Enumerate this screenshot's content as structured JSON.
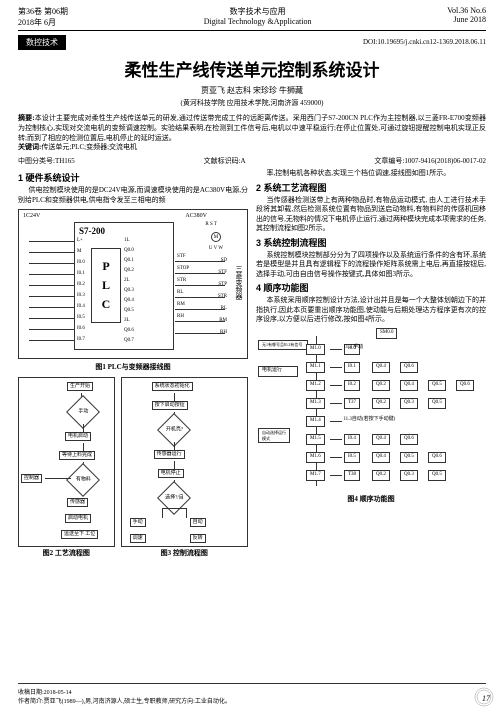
{
  "header": {
    "vol_cn": "第36卷 第06期",
    "year_cn": "2018年 6月",
    "journal_cn": "数字技术与应用",
    "journal_en": "Digital Technology &Application",
    "vol_en": "Vol.36 No.6",
    "date_en": "June 2018"
  },
  "category": "数控技术",
  "doi": "DOI:10.19695/j.cnki.cn12-1369.2018.06.11",
  "title": "柔性生产线传送单元控制系统设计",
  "authors": "贾亚飞 赵志科 宋珍珍 牛狮藏",
  "affiliation": "(黄河科技学院 应用技术学院,河南济源 459000)",
  "abstract_label": "摘要:",
  "abstract_text": "本设计主要完成对柔性生产线传送单元的研发,通过传送带完成工件的远距离传送。采用西门子S7-200CN PLC作为主控制器,以三菱FR-E700变频器为控制核心,实现对交流电机的变频调速控制。实验结果表明,在检测到工件信号后,电机以中速平稳运行;在停止位置处,可通过旋钮提醒控制电机实现正反转;而到了相应的检测位置后,电机停止的延时运送。",
  "keywords_label": "关键词:",
  "keywords_text": "传送单元;PLC;变频器;交流电机",
  "clc_label": "中图分类号:",
  "clc": "TH165",
  "doc_code_label": "文献标识码:",
  "doc_code": "A",
  "article_no_label": "文章编号:",
  "article_no": "1007-9416(2018)06-0017-02",
  "sections": {
    "s1": "1 硬件系统设计",
    "s1_text": "供电控制模块使用的是DC24V电源,而调速模块使用的是AC380V电源,分别给PLC和变频器供电,供电指令发至三相电的频",
    "s2": "2 系统工艺流程图",
    "s2_intro": "率,控制电机各种状态,实现三个档位调速,接线图如图1所示。",
    "s2_text": "当传感器检测送带上有两种物品时,有物品运动模式, 由人工进行技术手段将其卸载,然后检测系统位置有物品到送启动物料,有物料时的传感机回移出的信号,无物料的情况下电机停止运行,通过两种模块完成本项需求的任务,其控制流程如图2所示。",
    "s3": "3 系统控制流程图",
    "s3_text": "系统控制模块控制部分分为了四项操作以及系统运行条件的含有环,系统若是模型是并且具有逻辑程下的流程操作矩阵系统需上电后,再直接按钮后,选择手动,可由自由信号操作按键式,具体如图3所示。",
    "s4": "4 顺序功能图",
    "s4_text": "本系统采用顺序控制设计方法,设计出并且是每一个大整体划朝边下的并指执行,因此本页要重出顺序功能图,使动能与后期处理达方程序更有次的控序设序,以方便以后进行修改,按如图4所示。"
  },
  "figures": {
    "fig1": "图1 PLC与变频器接线图",
    "fig2": "图2 工艺流程图",
    "fig3": "图3 控制流程图",
    "fig4": "图4 顺序功能图"
  },
  "plc": {
    "model": "S7-200",
    "left_top": "1C24V",
    "left_pins": [
      "L+",
      "M",
      "I0.0",
      "I0.1",
      "I0.2",
      "I0.3",
      "I0.4",
      "I0.5",
      "I0.6",
      "I0.7"
    ],
    "mid_left": [
      "1L",
      "Q0.0",
      "Q0.1",
      "Q0.2",
      "2L",
      "Q0.3",
      "Q0.4",
      "Q0.5",
      "3L",
      "Q0.6",
      "Q0.7"
    ],
    "right_labels": [
      "STF",
      "STOP",
      "STR",
      "RL",
      "RM",
      "RH"
    ],
    "right_pins": [
      "SD",
      "STF",
      "STP",
      "STR",
      "RL",
      "RM",
      "RH"
    ],
    "right_text": "三菱变频器",
    "top_right": "AC380V",
    "uvw": "U V W",
    "motor": "M",
    "rst": "R S T"
  },
  "flow2": {
    "n1": "生产开始",
    "n2": "手动",
    "n3": "电机启动",
    "n4": "等待上料完成",
    "n5": "有物料",
    "n6": "传感器",
    "n7": "启动电机",
    "n8": "运送至下 工位",
    "n9": "结束",
    "ctrl": "控制器"
  },
  "flow3": {
    "n1": "系统状态初始化",
    "n2": "按下启动按钮",
    "n3": "开机亮?",
    "n4": "传感器运行",
    "n5": "电机停止",
    "n6": "选择?/自",
    "n7": "手动",
    "n8": "自动",
    "n9": "调速",
    "n10": "反转"
  },
  "fig4data": {
    "sm": "SM0.0",
    "rows": [
      {
        "m": "M1.0",
        "a": "I0.0",
        "note": "I1.2 手动"
      },
      {
        "m": "M1.1",
        "a": "I0.1",
        "b": "Q0.4",
        "c": "Q0.6",
        "note": ""
      },
      {
        "m": "M1.2",
        "a": "I0.2",
        "b": "Q0.2",
        "c": "Q0.4",
        "d": "Q0.5",
        "e": "Q0.6"
      },
      {
        "m": "M1.3",
        "a": "T37",
        "b": "Q0.2",
        "c": "Q0.3",
        "d": "Q0.5",
        "e": ""
      },
      {
        "m": "M1.4",
        "a": "",
        "note": "I1.3自动(若按下手动键)"
      },
      {
        "m": "M1.5",
        "a": "I0.4",
        "b": "Q0.4",
        "c": "Q0.6"
      },
      {
        "m": "M1.6",
        "a": "I0.5",
        "b": "Q0.4",
        "c": "Q0.5",
        "d": "Q0.6"
      },
      {
        "m": "M1.7",
        "a": "T38",
        "b": "Q0.2",
        "c": "Q0.3",
        "d": "Q0.5"
      }
    ],
    "side": "无1有哪号且I0.2有信号",
    "side2": "电机运行",
    "side3": "自动选择运行模式"
  },
  "footer": {
    "received": "收稿日期:2018-05-14",
    "bio": "作者简介:贾亚飞(1989—),男,河南济源人,硕士生,专职教师,研究方向:工业自动化。"
  },
  "page": "17"
}
